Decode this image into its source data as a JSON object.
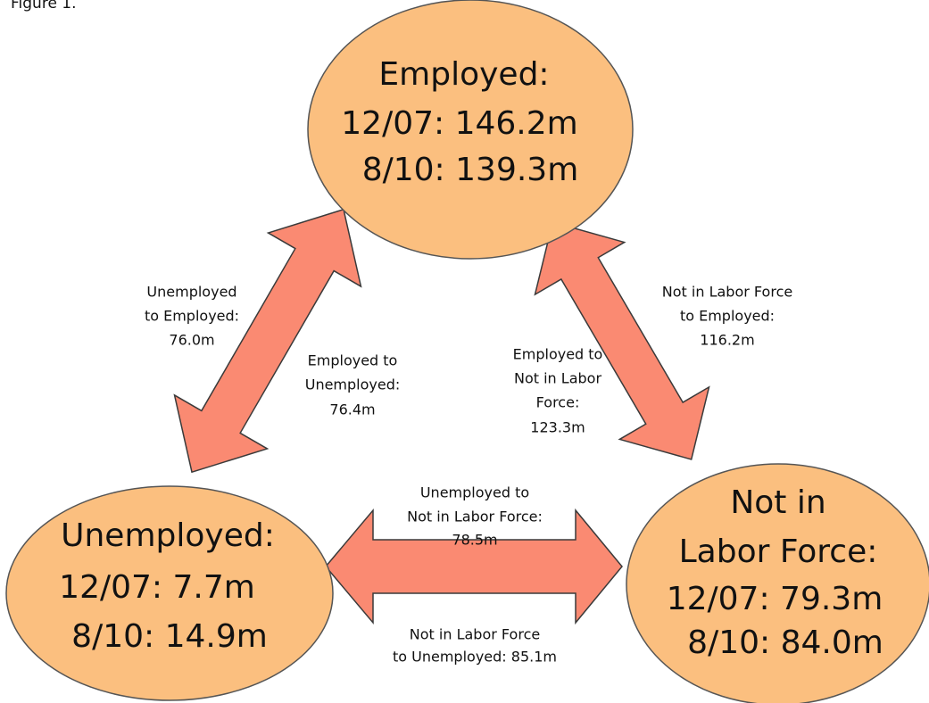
{
  "caption": "Figure 1.",
  "nodes": [
    {
      "lines": [
        "Employed:",
        "12/07: 146.2m",
        "8/10: 139.3m"
      ]
    },
    {
      "lines": [
        "Unemployed:",
        "12/07: 7.7m",
        "8/10: 14.9m"
      ]
    },
    {
      "lines": [
        "Not in",
        "Labor Force:",
        "12/07: 79.3m",
        "8/10: 84.0m"
      ]
    }
  ],
  "edges": [
    {
      "lines": [
        "Unemployed",
        "to Employed:",
        "76.0m"
      ]
    },
    {
      "lines": [
        "Employed to",
        "Unemployed:",
        "76.4m"
      ]
    },
    {
      "lines": [
        "Employed  to",
        "Not in Labor",
        "Force:",
        "123.3m"
      ]
    },
    {
      "lines": [
        "Not in Labor Force",
        "to Employed:",
        "116.2m"
      ]
    },
    {
      "lines": [
        "Unemployed  to",
        "Not in Labor Force:",
        "78.5m"
      ]
    },
    {
      "lines": [
        "Not in Labor Force",
        "to Unemployed: 85.1m"
      ]
    }
  ]
}
